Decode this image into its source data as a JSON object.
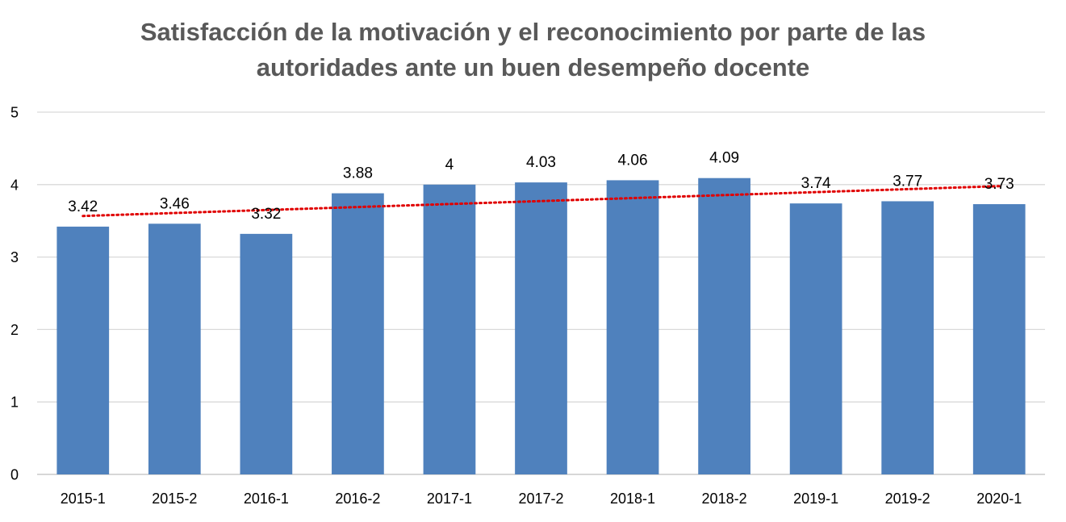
{
  "chart_data": {
    "type": "bar",
    "title_lines": [
      "Satisfacción de la motivación y el reconocimiento por parte de las",
      "autoridades ante un buen desempeño docente"
    ],
    "categories": [
      "2015-1",
      "2015-2",
      "2016-1",
      "2016-2",
      "2017-1",
      "2017-2",
      "2018-1",
      "2018-2",
      "2019-1",
      "2019-2",
      "2020-1"
    ],
    "values": [
      3.42,
      3.46,
      3.32,
      3.88,
      4,
      4.03,
      4.06,
      4.09,
      3.74,
      3.77,
      3.73
    ],
    "data_labels": [
      "3.42",
      "3.46",
      "3.32",
      "3.88",
      "4",
      "4.03",
      "4.06",
      "4.09",
      "3.74",
      "3.77",
      "3.73"
    ],
    "y_ticks": [
      0,
      1,
      2,
      3,
      4,
      5
    ],
    "ylim": [
      0,
      5
    ],
    "trendline": {
      "type": "linear",
      "style": "dotted",
      "color": "#E00000"
    },
    "grid": true,
    "legend": "none",
    "colors": {
      "bar": "#4F81BD",
      "grid": "#D9D9D9",
      "axis": "#BFBFBF",
      "title": "#595959",
      "text": "#000000"
    }
  }
}
